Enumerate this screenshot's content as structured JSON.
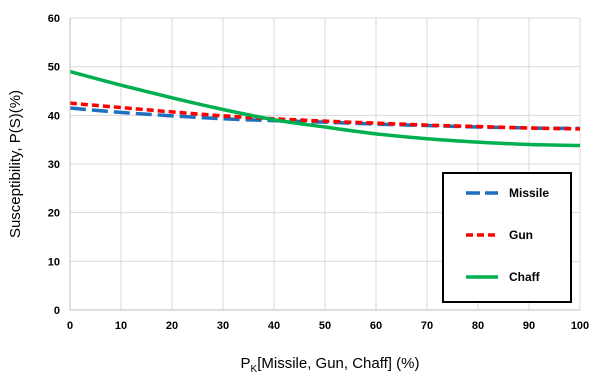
{
  "chart_data": {
    "type": "line",
    "title": "",
    "xlabel_main": "P",
    "xlabel_sub": "K",
    "xlabel_rest": "[Missile, Gun, Chaff] (%)",
    "ylabel": "Susceptibility, P(S)(%)",
    "xlim": [
      0,
      100
    ],
    "ylim": [
      0,
      60
    ],
    "x_ticks": [
      0,
      10,
      20,
      30,
      40,
      50,
      60,
      70,
      80,
      90,
      100
    ],
    "y_ticks": [
      0,
      10,
      20,
      30,
      40,
      50,
      60
    ],
    "grid": true,
    "legend_position": "bottom-right",
    "x": [
      0,
      10,
      20,
      30,
      40,
      50,
      60,
      70,
      80,
      90,
      100
    ],
    "series": [
      {
        "name": "Missile",
        "color": "#1f6fbf",
        "dash": "long-dash",
        "values": [
          41.5,
          40.6,
          39.9,
          39.3,
          38.9,
          38.6,
          38.2,
          37.9,
          37.6,
          37.4,
          37.3
        ]
      },
      {
        "name": "Gun",
        "color": "#ff0000",
        "dash": "short-dash",
        "values": [
          42.5,
          41.6,
          40.7,
          39.9,
          39.3,
          38.8,
          38.4,
          38.0,
          37.7,
          37.4,
          37.2
        ]
      },
      {
        "name": "Chaff",
        "color": "#00b050",
        "dash": "solid",
        "values": [
          49.0,
          46.2,
          43.6,
          41.2,
          39.1,
          37.6,
          36.2,
          35.2,
          34.5,
          34.0,
          33.8
        ]
      }
    ]
  }
}
